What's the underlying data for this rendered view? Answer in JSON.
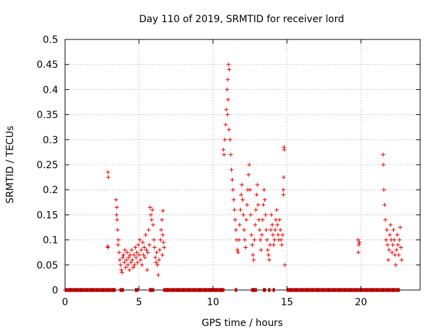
{
  "chart_data": {
    "type": "scatter",
    "title": "Day 110 of 2019, SRMTID for receiver lord",
    "xlabel": "GPS time / hours",
    "ylabel": "SRMTID / TECUs",
    "xlim": [
      0,
      24
    ],
    "ylim": [
      0,
      0.5
    ],
    "x_ticks": [
      0,
      5,
      10,
      15,
      20
    ],
    "x_tick_labels": [
      "0",
      "5",
      "10",
      "15",
      "20"
    ],
    "y_ticks": [
      0,
      0.05,
      0.1,
      0.15,
      0.2,
      0.25,
      0.3,
      0.35,
      0.4,
      0.45,
      0.5
    ],
    "y_tick_labels": [
      "0",
      "0.05",
      "0.1",
      "0.15",
      "0.2",
      "0.25",
      "0.3",
      "0.35",
      "0.4",
      "0.45",
      "0.5"
    ],
    "grid": true,
    "marker": "plus",
    "series": [
      {
        "name": "SRMTID",
        "color": "#e00000",
        "points": [
          [
            2.9,
            0.235
          ],
          [
            2.92,
            0.225
          ],
          [
            2.88,
            0.087
          ],
          [
            2.9,
            0.085
          ],
          [
            3.45,
            0.18
          ],
          [
            3.5,
            0.165
          ],
          [
            3.48,
            0.15
          ],
          [
            3.52,
            0.14
          ],
          [
            3.55,
            0.12
          ],
          [
            3.6,
            0.1
          ],
          [
            3.58,
            0.09
          ],
          [
            3.65,
            0.075
          ],
          [
            3.7,
            0.06
          ],
          [
            3.75,
            0.05
          ],
          [
            3.8,
            0.04
          ],
          [
            3.85,
            0.035
          ],
          [
            3.9,
            0.065
          ],
          [
            3.95,
            0.07
          ],
          [
            4.0,
            0.055
          ],
          [
            4.05,
            0.08
          ],
          [
            4.1,
            0.045
          ],
          [
            4.15,
            0.06
          ],
          [
            4.2,
            0.075
          ],
          [
            4.25,
            0.05
          ],
          [
            4.3,
            0.065
          ],
          [
            4.35,
            0.04
          ],
          [
            4.4,
            0.07
          ],
          [
            4.45,
            0.055
          ],
          [
            4.5,
            0.08
          ],
          [
            4.55,
            0.06
          ],
          [
            4.6,
            0.045
          ],
          [
            4.65,
            0.07
          ],
          [
            4.7,
            0.05
          ],
          [
            4.75,
            0.085
          ],
          [
            4.8,
            0.065
          ],
          [
            4.85,
            0.075
          ],
          [
            4.9,
            0.055
          ],
          [
            4.95,
            0.09
          ],
          [
            5.0,
            0.07
          ],
          [
            5.05,
            0.1
          ],
          [
            5.1,
            0.06
          ],
          [
            5.15,
            0.08
          ],
          [
            5.2,
            0.05
          ],
          [
            5.25,
            0.095
          ],
          [
            5.3,
            0.07
          ],
          [
            5.35,
            0.085
          ],
          [
            5.4,
            0.065
          ],
          [
            5.45,
            0.11
          ],
          [
            5.5,
            0.08
          ],
          [
            5.55,
            0.04
          ],
          [
            5.6,
            0.075
          ],
          [
            5.65,
            0.12
          ],
          [
            5.7,
            0.09
          ],
          [
            5.75,
            0.165
          ],
          [
            5.8,
            0.15
          ],
          [
            5.85,
            0.14
          ],
          [
            5.9,
            0.16
          ],
          [
            5.95,
            0.13
          ],
          [
            6.0,
            0.1
          ],
          [
            6.05,
            0.085
          ],
          [
            6.1,
            0.065
          ],
          [
            6.15,
            0.055
          ],
          [
            6.2,
            0.075
          ],
          [
            6.25,
            0.05
          ],
          [
            6.3,
            0.03
          ],
          [
            6.35,
            0.06
          ],
          [
            6.4,
            0.08
          ],
          [
            6.45,
            0.1
          ],
          [
            6.5,
            0.12
          ],
          [
            6.55,
            0.14
          ],
          [
            6.6,
            0.11
          ],
          [
            6.65,
            0.095
          ],
          [
            6.7,
            0.085
          ],
          [
            6.62,
            0.158
          ],
          [
            6.58,
            0.07
          ],
          [
            10.7,
            0.28
          ],
          [
            10.75,
            0.27
          ],
          [
            10.8,
            0.3
          ],
          [
            10.85,
            0.33
          ],
          [
            10.9,
            0.36
          ],
          [
            10.95,
            0.4
          ],
          [
            11.0,
            0.42
          ],
          [
            11.05,
            0.45
          ],
          [
            11.1,
            0.44
          ],
          [
            11.02,
            0.38
          ],
          [
            10.98,
            0.35
          ],
          [
            11.08,
            0.32
          ],
          [
            11.15,
            0.3
          ],
          [
            11.2,
            0.27
          ],
          [
            11.25,
            0.24
          ],
          [
            11.3,
            0.22
          ],
          [
            11.35,
            0.2
          ],
          [
            11.4,
            0.18
          ],
          [
            11.45,
            0.16
          ],
          [
            11.5,
            0.14
          ],
          [
            11.55,
            0.12
          ],
          [
            11.6,
            0.1
          ],
          [
            11.65,
            0.08
          ],
          [
            11.7,
            0.075
          ],
          [
            11.75,
            0.1
          ],
          [
            11.8,
            0.13
          ],
          [
            11.85,
            0.16
          ],
          [
            11.9,
            0.19
          ],
          [
            11.95,
            0.21
          ],
          [
            12.0,
            0.18
          ],
          [
            12.05,
            0.15
          ],
          [
            12.1,
            0.12
          ],
          [
            12.15,
            0.1
          ],
          [
            12.2,
            0.085
          ],
          [
            12.25,
            0.14
          ],
          [
            12.3,
            0.17
          ],
          [
            12.35,
            0.2
          ],
          [
            12.4,
            0.23
          ],
          [
            12.45,
            0.25
          ],
          [
            12.5,
            0.2
          ],
          [
            12.55,
            0.15
          ],
          [
            12.6,
            0.11
          ],
          [
            12.65,
            0.09
          ],
          [
            12.7,
            0.07
          ],
          [
            12.75,
            0.06
          ],
          [
            12.8,
            0.1
          ],
          [
            12.85,
            0.13
          ],
          [
            12.9,
            0.16
          ],
          [
            12.95,
            0.19
          ],
          [
            13.0,
            0.21
          ],
          [
            13.05,
            0.17
          ],
          [
            13.1,
            0.14
          ],
          [
            13.15,
            0.12
          ],
          [
            13.2,
            0.1
          ],
          [
            13.25,
            0.08
          ],
          [
            13.3,
            0.11
          ],
          [
            13.35,
            0.14
          ],
          [
            13.4,
            0.17
          ],
          [
            13.45,
            0.2
          ],
          [
            13.5,
            0.18
          ],
          [
            13.55,
            0.15
          ],
          [
            13.6,
            0.12
          ],
          [
            13.65,
            0.1
          ],
          [
            13.7,
            0.08
          ],
          [
            13.75,
            0.07
          ],
          [
            13.8,
            0.06
          ],
          [
            13.85,
            0.09
          ],
          [
            13.9,
            0.12
          ],
          [
            13.95,
            0.15
          ],
          [
            14.0,
            0.13
          ],
          [
            14.05,
            0.11
          ],
          [
            14.1,
            0.09
          ],
          [
            14.15,
            0.1
          ],
          [
            14.2,
            0.12
          ],
          [
            14.25,
            0.14
          ],
          [
            14.3,
            0.16
          ],
          [
            14.35,
            0.13
          ],
          [
            14.4,
            0.11
          ],
          [
            14.45,
            0.1
          ],
          [
            14.5,
            0.14
          ],
          [
            14.55,
            0.12
          ],
          [
            14.6,
            0.1
          ],
          [
            14.65,
            0.09
          ],
          [
            14.7,
            0.11
          ],
          [
            14.75,
            0.2
          ],
          [
            14.8,
            0.285
          ],
          [
            14.82,
            0.28
          ],
          [
            14.78,
            0.225
          ],
          [
            14.85,
            0.05
          ],
          [
            14.76,
            0.19
          ],
          [
            19.8,
            0.1
          ],
          [
            19.85,
            0.09
          ],
          [
            19.82,
            0.075
          ],
          [
            19.9,
            0.095
          ],
          [
            21.5,
            0.27
          ],
          [
            21.52,
            0.25
          ],
          [
            21.55,
            0.2
          ],
          [
            21.6,
            0.17
          ],
          [
            21.65,
            0.14
          ],
          [
            21.7,
            0.1
          ],
          [
            21.75,
            0.12
          ],
          [
            21.8,
            0.09
          ],
          [
            21.85,
            0.06
          ],
          [
            21.9,
            0.08
          ],
          [
            21.95,
            0.11
          ],
          [
            22.0,
            0.13
          ],
          [
            22.05,
            0.1
          ],
          [
            22.1,
            0.075
          ],
          [
            22.15,
            0.09
          ],
          [
            22.2,
            0.12
          ],
          [
            22.25,
            0.1
          ],
          [
            22.3,
            0.07
          ],
          [
            22.35,
            0.05
          ],
          [
            22.4,
            0.08
          ],
          [
            22.45,
            0.11
          ],
          [
            22.5,
            0.09
          ],
          [
            22.55,
            0.07
          ],
          [
            22.6,
            0.1
          ],
          [
            22.65,
            0.125
          ],
          [
            22.7,
            0.085
          ],
          [
            22.75,
            0.06
          ]
        ],
        "zero_runs": [
          [
            0.0,
            3.4
          ],
          [
            3.7,
            3.95
          ],
          [
            4.75,
            4.95
          ],
          [
            5.7,
            6.0
          ],
          [
            6.65,
            10.75
          ],
          [
            11.5,
            11.6
          ],
          [
            12.6,
            12.95
          ],
          [
            13.4,
            13.55
          ],
          [
            13.75,
            13.85
          ],
          [
            14.05,
            14.15
          ],
          [
            15.0,
            21.7
          ],
          [
            21.75,
            22.6
          ]
        ],
        "zero_run_step": 0.05
      }
    ]
  }
}
